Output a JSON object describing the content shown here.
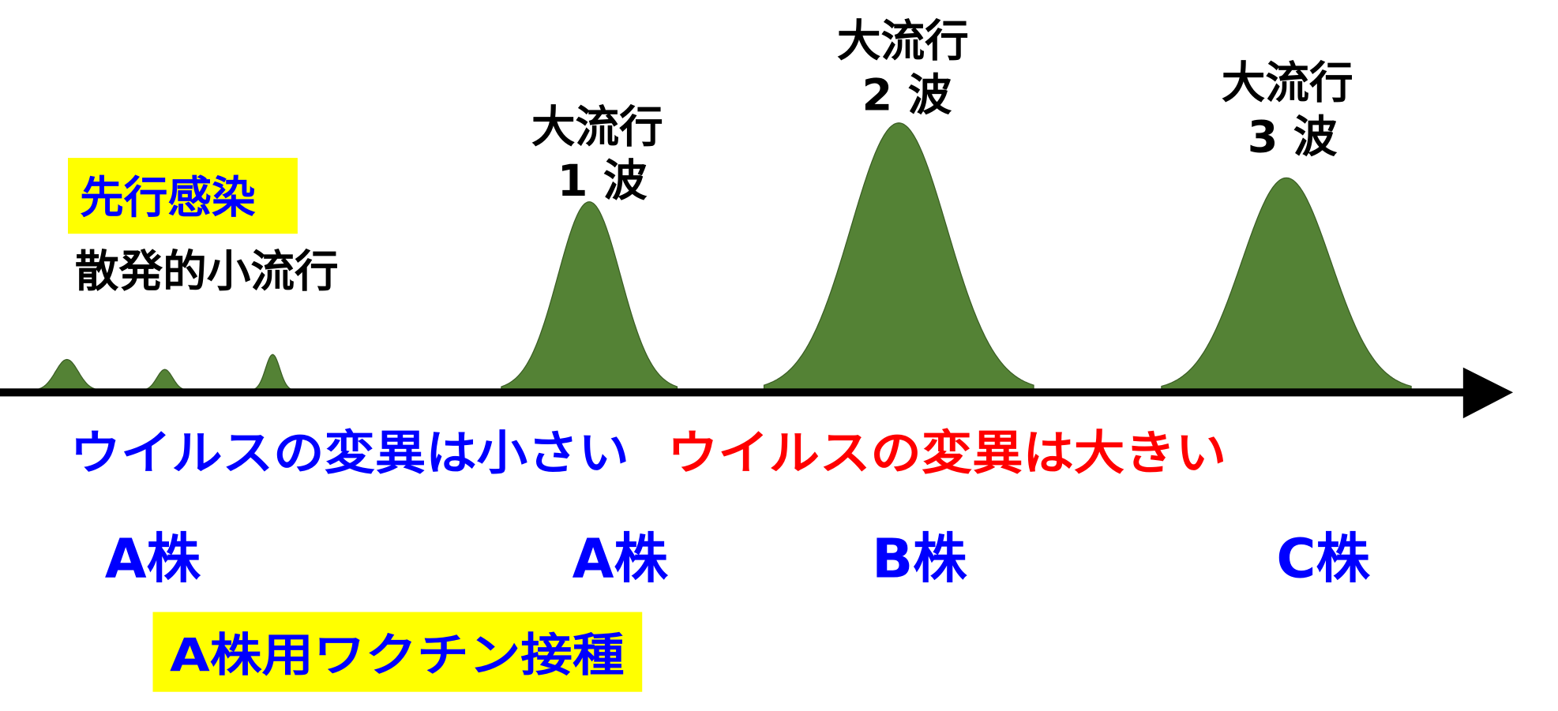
{
  "colors": {
    "peak_fill": "#548235",
    "peak_stroke": "#3b5e25",
    "axis": "#000000",
    "highlight": "#ffff00",
    "blue": "#0000ff",
    "red": "#ff0000",
    "black": "#000000"
  },
  "prior_infection": {
    "label": "先行感染",
    "sporadic": "散発的小流行"
  },
  "waves": [
    {
      "title": "大流行",
      "number": "1 波"
    },
    {
      "title": "大流行",
      "number": "2 波"
    },
    {
      "title": "大流行",
      "number": "3 波"
    }
  ],
  "mutation": {
    "small": "ウイルスの変異は小さい",
    "large": "ウイルスの変異は大きい"
  },
  "strains": [
    "A株",
    "A株",
    "B株",
    "C株"
  ],
  "vaccine": "A株用ワクチン接種"
}
